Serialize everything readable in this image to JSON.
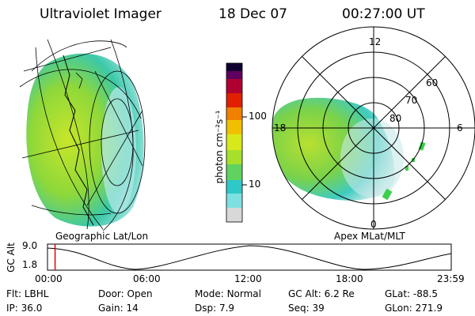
{
  "header": {
    "instrument": "Ultraviolet Imager",
    "date": "18 Dec 07",
    "time": "00:27:00 UT"
  },
  "panels": {
    "left_label": "Geographic Lat/Lon",
    "right_label": "Apex MLat/MLT"
  },
  "polar": {
    "mlt_labels": [
      "12",
      "18",
      "6",
      "0"
    ],
    "mlat_labels": [
      "60",
      "70",
      "80"
    ]
  },
  "colorbar": {
    "label": "photon cm⁻²s⁻¹",
    "ticks": [
      "100",
      "10"
    ]
  },
  "timeline": {
    "axis_label": "GC Alt",
    "y_ticks": [
      "9.0",
      "1.8"
    ],
    "x_ticks": [
      "00:00",
      "06:00",
      "12:00",
      "18:00",
      "23:59"
    ],
    "marker_time_hours": 0.45
  },
  "info": {
    "row1": [
      {
        "label": "Flt:",
        "value": "LBHL"
      },
      {
        "label": "Door:",
        "value": "Open"
      },
      {
        "label": "Mode:",
        "value": "Normal"
      },
      {
        "label": "GC Alt:",
        "value": "6.2 Re"
      },
      {
        "label": "GLat:",
        "value": "-88.5"
      }
    ],
    "row2": [
      {
        "label": "IP:",
        "value": "36.0"
      },
      {
        "label": "Gain:",
        "value": "14"
      },
      {
        "label": "Dsp:",
        "value": "7.9"
      },
      {
        "label": "Seq:",
        "value": "39"
      },
      {
        "label": "GLon:",
        "value": "271.9"
      }
    ]
  },
  "colors": {
    "scale": [
      "#d8d8d8",
      "#7ee0e0",
      "#2ec8c8",
      "#5fd25f",
      "#a6e02a",
      "#d8e81a",
      "#f0c000",
      "#f08000",
      "#e02000",
      "#b00030",
      "#600060",
      "#100030"
    ]
  }
}
